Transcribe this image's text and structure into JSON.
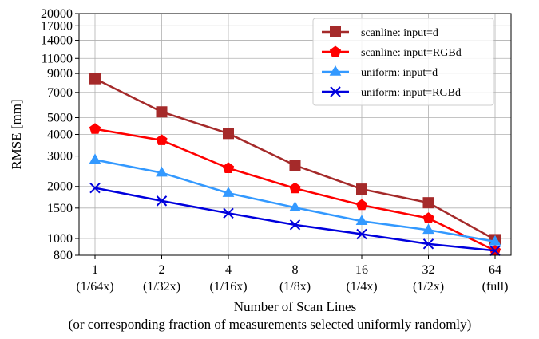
{
  "chart_data": {
    "type": "line",
    "x_scale": "log2",
    "y_scale": "log",
    "x": [
      1,
      2,
      4,
      8,
      16,
      32,
      64
    ],
    "x_tick_labels": [
      {
        "main": "1",
        "sub": "(1/64x)"
      },
      {
        "main": "2",
        "sub": "(1/32x)"
      },
      {
        "main": "4",
        "sub": "(1/16x)"
      },
      {
        "main": "8",
        "sub": "(1/8x)"
      },
      {
        "main": "16",
        "sub": "(1/4x)"
      },
      {
        "main": "32",
        "sub": "(1/2x)"
      },
      {
        "main": "64",
        "sub": "(full)"
      }
    ],
    "xlabel": "Number of Scan Lines",
    "xlabel_sub": "(or corresponding fraction of measurements selected uniformly randomly)",
    "ylabel": "RMSE [mm]",
    "ylim": [
      800,
      20000
    ],
    "y_ticks": [
      800,
      1000,
      1500,
      2000,
      3000,
      4000,
      5000,
      7000,
      9000,
      11000,
      14000,
      17000,
      20000
    ],
    "grid": true,
    "legend_position": "upper right",
    "series": [
      {
        "name": "scanline: input=d",
        "color": "#a52a2a",
        "marker": "square",
        "values": [
          8400,
          5400,
          4050,
          2650,
          1930,
          1610,
          985
        ]
      },
      {
        "name": "scanline: input=RGBd",
        "color": "#ff0000",
        "marker": "pentagon",
        "values": [
          4300,
          3700,
          2550,
          1950,
          1560,
          1310,
          850
        ]
      },
      {
        "name": "uniform: input=d",
        "color": "#3399ff",
        "marker": "triangle",
        "values": [
          2850,
          2400,
          1830,
          1510,
          1260,
          1120,
          960
        ]
      },
      {
        "name": "uniform: input=RGBd",
        "color": "#0000dd",
        "marker": "x",
        "values": [
          1960,
          1650,
          1400,
          1200,
          1060,
          930,
          850
        ]
      }
    ]
  }
}
